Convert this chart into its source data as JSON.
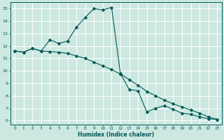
{
  "xlabel": "Humidex (Indice chaleur)",
  "ylabel": "",
  "xlim": [
    -0.5,
    23.5
  ],
  "ylim": [
    5.7,
    15.5
  ],
  "xticks": [
    0,
    1,
    2,
    3,
    4,
    5,
    6,
    7,
    8,
    9,
    10,
    11,
    12,
    13,
    14,
    15,
    16,
    17,
    18,
    19,
    20,
    21,
    22,
    23
  ],
  "yticks": [
    6,
    7,
    8,
    9,
    10,
    11,
    12,
    13,
    14,
    15
  ],
  "background_color": "#cce8e0",
  "grid_color": "#b8d8d0",
  "line_color": "#005858",
  "line1_x": [
    0,
    1,
    2,
    3,
    4,
    5,
    6,
    7,
    8,
    9,
    10,
    11,
    12,
    13,
    14,
    15,
    16,
    17,
    18,
    19,
    20,
    21,
    22,
    23
  ],
  "line1_y": [
    11.6,
    11.5,
    11.8,
    11.6,
    12.5,
    12.2,
    12.4,
    13.5,
    14.3,
    15.0,
    14.9,
    15.1,
    9.8,
    8.5,
    8.4,
    6.7,
    7.0,
    7.2,
    6.9,
    6.6,
    6.5,
    6.3,
    6.15,
    6.1
  ],
  "line2_x": [
    0,
    1,
    2,
    3,
    4,
    5,
    6,
    7,
    8,
    9,
    10,
    11,
    12,
    13,
    14,
    15,
    16,
    17,
    18,
    19,
    20,
    21,
    22,
    23
  ],
  "line2_y": [
    11.6,
    11.5,
    11.8,
    11.6,
    11.55,
    11.5,
    11.4,
    11.2,
    11.0,
    10.7,
    10.4,
    10.1,
    9.75,
    9.3,
    8.85,
    8.35,
    8.0,
    7.65,
    7.35,
    7.1,
    6.85,
    6.6,
    6.3,
    6.1
  ]
}
